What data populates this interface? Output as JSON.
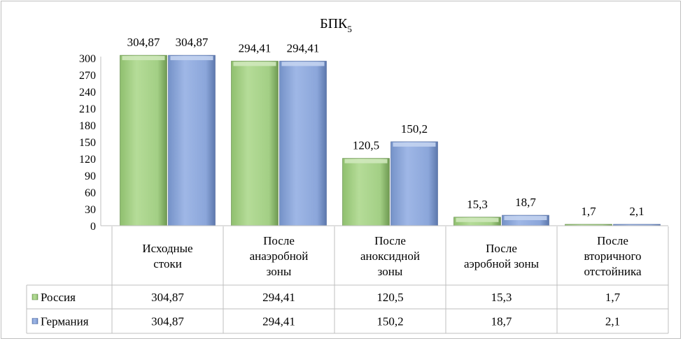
{
  "chart_data": {
    "type": "bar",
    "title_main": "БПК",
    "title_sub": "5",
    "categories": [
      [
        "Исходные",
        "стоки"
      ],
      [
        "После",
        "анаэробной",
        "зоны"
      ],
      [
        "После",
        "аноксидной",
        "зоны"
      ],
      [
        "После",
        "аэробной зоны"
      ],
      [
        "После",
        "вторичного",
        "отстойника"
      ]
    ],
    "series": [
      {
        "name": "Россия",
        "values": [
          304.87,
          294.41,
          120.5,
          15.3,
          1.7
        ],
        "labels": [
          "304,87",
          "294,41",
          "120,5",
          "15,3",
          "1,7"
        ],
        "color": "#a9d18e"
      },
      {
        "name": "Германия",
        "values": [
          304.87,
          294.41,
          150.2,
          18.7,
          2.1
        ],
        "labels": [
          "304,87",
          "294,41",
          "150,2",
          "18,7",
          "2,1"
        ],
        "color": "#8faadc"
      }
    ],
    "yticks": [
      0,
      30,
      60,
      90,
      120,
      150,
      180,
      210,
      240,
      270,
      300
    ],
    "ylim": [
      0,
      300
    ],
    "grid": false,
    "legend": "data-table"
  }
}
